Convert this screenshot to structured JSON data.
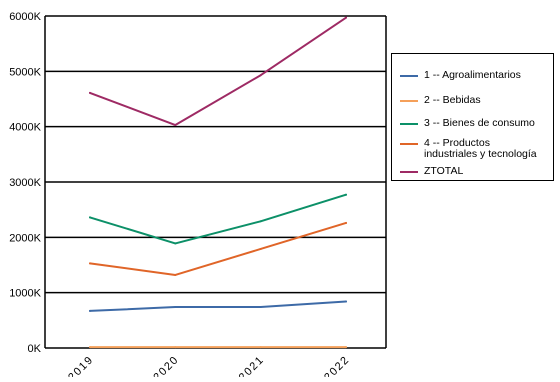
{
  "chart_data": {
    "type": "line",
    "title": "",
    "xlabel": "",
    "ylabel": "",
    "x": [
      "2019",
      "2020",
      "2021",
      "2022"
    ],
    "y_ticks": [
      "0K",
      "1000K",
      "2000K",
      "3000K",
      "4000K",
      "5000K",
      "6000K"
    ],
    "ylim": [
      0,
      6000
    ],
    "grid": "horizontal",
    "legend_position": "right",
    "series": [
      {
        "name": "1 -- Agroalimentarios",
        "color": "#3d6aa7",
        "values": [
          670,
          740,
          740,
          840
        ]
      },
      {
        "name": "2 -- Bebidas",
        "color": "#f5a05a",
        "values": [
          15,
          15,
          15,
          15
        ]
      },
      {
        "name": "3 -- Bienes de consumo",
        "color": "#0c9068",
        "values": [
          2360,
          1890,
          2290,
          2770
        ]
      },
      {
        "name": "4 -- Productos\nindustriales y tecnología",
        "color": "#e06528",
        "values": [
          1530,
          1320,
          1790,
          2260
        ]
      },
      {
        "name": "ZTOTAL",
        "color": "#9e2a64",
        "values": [
          4610,
          4030,
          4930,
          5970
        ]
      }
    ]
  }
}
